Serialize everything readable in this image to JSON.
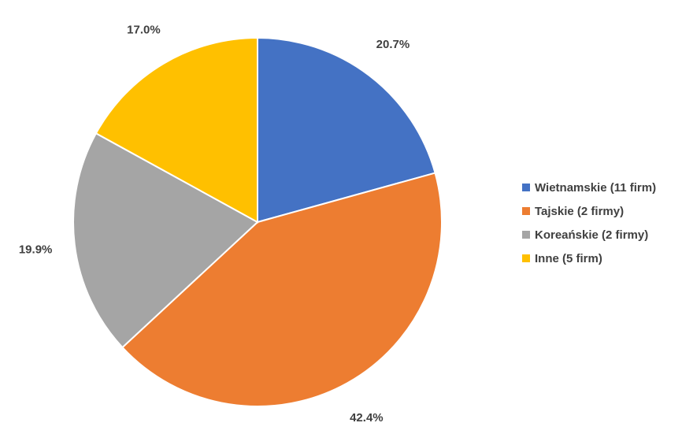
{
  "chart_data": {
    "type": "pie",
    "slices": [
      {
        "label": "Wietnamskie (11 firm)",
        "value": 20.7,
        "value_label": "20.7%",
        "color": "#4472C4"
      },
      {
        "label": "Tajskie (2 firmy)",
        "value": 42.4,
        "value_label": "42.4%",
        "color": "#ED7D31"
      },
      {
        "label": "Koreańskie (2 firmy)",
        "value": 19.9,
        "value_label": "19.9%",
        "color": "#A5A5A5"
      },
      {
        "label": "Inne (5 firm)",
        "value": 17.0,
        "value_label": "17.0%",
        "color": "#FFC000"
      }
    ],
    "start": "12 o'clock",
    "direction": "clockwise",
    "legend_position": "right"
  }
}
